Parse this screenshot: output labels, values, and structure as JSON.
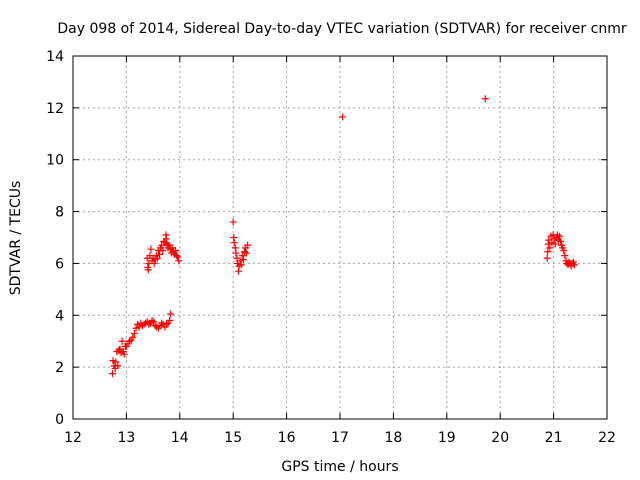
{
  "chart_data": {
    "type": "scatter",
    "title": "Day 098 of 2014, Sidereal Day-to-day VTEC variation (SDTVAR) for receiver cnmr",
    "xlabel": "GPS time / hours",
    "ylabel": "SDTVAR / TECUs",
    "xlim": [
      12,
      22
    ],
    "ylim": [
      0,
      14
    ],
    "x_ticks": [
      "12",
      "13",
      "14",
      "15",
      "16",
      "17",
      "18",
      "19",
      "20",
      "21",
      "22"
    ],
    "y_ticks": [
      "0",
      "2",
      "4",
      "6",
      "8",
      "10",
      "12",
      "14"
    ],
    "grid": true,
    "marker": "+",
    "marker_color": "#ff0000",
    "series": [
      {
        "name": "SDTVAR",
        "points": [
          [
            12.74,
            1.75
          ],
          [
            12.75,
            2.25
          ],
          [
            12.77,
            2.05
          ],
          [
            12.79,
            1.95
          ],
          [
            12.8,
            2.2
          ],
          [
            12.82,
            2.6
          ],
          [
            12.84,
            2.05
          ],
          [
            12.86,
            2.65
          ],
          [
            12.88,
            2.7
          ],
          [
            12.9,
            2.55
          ],
          [
            12.92,
            3.0
          ],
          [
            12.94,
            2.6
          ],
          [
            12.96,
            2.5
          ],
          [
            12.98,
            2.8
          ],
          [
            13.0,
            2.8
          ],
          [
            13.03,
            2.9
          ],
          [
            13.06,
            3.0
          ],
          [
            13.09,
            3.05
          ],
          [
            13.12,
            3.15
          ],
          [
            13.15,
            3.3
          ],
          [
            13.18,
            3.5
          ],
          [
            13.21,
            3.65
          ],
          [
            13.24,
            3.55
          ],
          [
            13.27,
            3.7
          ],
          [
            13.3,
            3.6
          ],
          [
            13.33,
            3.65
          ],
          [
            13.36,
            3.7
          ],
          [
            13.39,
            3.75
          ],
          [
            13.42,
            3.65
          ],
          [
            13.45,
            3.7
          ],
          [
            13.48,
            3.8
          ],
          [
            13.51,
            3.75
          ],
          [
            13.54,
            3.6
          ],
          [
            13.57,
            3.55
          ],
          [
            13.6,
            3.5
          ],
          [
            13.63,
            3.6
          ],
          [
            13.66,
            3.7
          ],
          [
            13.69,
            3.65
          ],
          [
            13.72,
            3.55
          ],
          [
            13.75,
            3.65
          ],
          [
            13.78,
            3.7
          ],
          [
            13.81,
            3.8
          ],
          [
            13.83,
            4.05
          ],
          [
            13.39,
            6.2
          ],
          [
            13.4,
            5.85
          ],
          [
            13.41,
            5.75
          ],
          [
            13.42,
            6.0
          ],
          [
            13.44,
            6.3
          ],
          [
            13.46,
            6.55
          ],
          [
            13.48,
            6.1
          ],
          [
            13.5,
            6.2
          ],
          [
            13.52,
            6.0
          ],
          [
            13.54,
            6.15
          ],
          [
            13.56,
            6.3
          ],
          [
            13.58,
            6.2
          ],
          [
            13.6,
            6.5
          ],
          [
            13.62,
            6.35
          ],
          [
            13.64,
            6.6
          ],
          [
            13.66,
            6.7
          ],
          [
            13.68,
            6.5
          ],
          [
            13.7,
            6.85
          ],
          [
            13.72,
            6.8
          ],
          [
            13.74,
            7.1
          ],
          [
            13.75,
            6.95
          ],
          [
            13.76,
            6.75
          ],
          [
            13.78,
            6.6
          ],
          [
            13.8,
            6.7
          ],
          [
            13.82,
            6.55
          ],
          [
            13.84,
            6.4
          ],
          [
            13.86,
            6.6
          ],
          [
            13.88,
            6.45
          ],
          [
            13.9,
            6.35
          ],
          [
            13.92,
            6.5
          ],
          [
            13.94,
            6.3
          ],
          [
            13.96,
            6.25
          ],
          [
            13.98,
            6.1
          ],
          [
            15.0,
            7.6
          ],
          [
            15.01,
            7.0
          ],
          [
            15.02,
            6.8
          ],
          [
            15.04,
            6.6
          ],
          [
            15.05,
            6.4
          ],
          [
            15.07,
            6.2
          ],
          [
            15.08,
            6.0
          ],
          [
            15.1,
            5.7
          ],
          [
            15.11,
            5.9
          ],
          [
            15.13,
            6.1
          ],
          [
            15.15,
            5.95
          ],
          [
            15.17,
            6.3
          ],
          [
            15.19,
            6.15
          ],
          [
            15.21,
            6.45
          ],
          [
            15.23,
            6.6
          ],
          [
            15.25,
            6.4
          ],
          [
            15.27,
            6.7
          ],
          [
            17.05,
            11.65
          ],
          [
            19.72,
            12.35
          ],
          [
            20.88,
            6.2
          ],
          [
            20.89,
            6.45
          ],
          [
            20.9,
            6.75
          ],
          [
            20.91,
            6.9
          ],
          [
            20.93,
            6.6
          ],
          [
            20.95,
            7.05
          ],
          [
            20.97,
            6.8
          ],
          [
            20.99,
            7.1
          ],
          [
            21.01,
            6.95
          ],
          [
            21.03,
            6.75
          ],
          [
            21.05,
            7.0
          ],
          [
            21.07,
            7.1
          ],
          [
            21.09,
            6.9
          ],
          [
            21.11,
            7.05
          ],
          [
            21.13,
            6.85
          ],
          [
            21.15,
            6.7
          ],
          [
            21.17,
            6.6
          ],
          [
            21.19,
            6.5
          ],
          [
            21.21,
            6.3
          ],
          [
            21.23,
            6.1
          ],
          [
            21.25,
            6.0
          ],
          [
            21.27,
            5.95
          ],
          [
            21.29,
            6.05
          ],
          [
            21.31,
            6.0
          ],
          [
            21.33,
            5.9
          ],
          [
            21.35,
            6.0
          ],
          [
            21.37,
            6.05
          ],
          [
            21.39,
            5.95
          ]
        ]
      }
    ]
  }
}
